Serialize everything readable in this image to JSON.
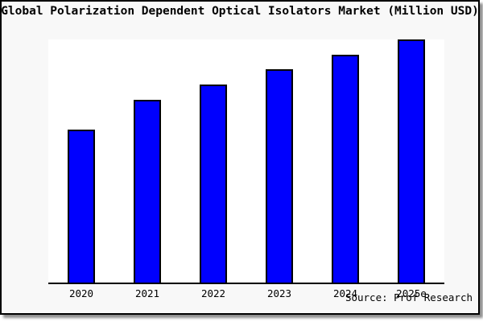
{
  "chart_data": {
    "type": "bar",
    "title": "Global Polarization Dependent Optical Isolators Market (Million USD)",
    "categories": [
      "2020",
      "2021",
      "2022",
      "2023",
      "2024",
      "2025e"
    ],
    "values": [
      62.9,
      75.3,
      81.5,
      87.7,
      93.7,
      100
    ],
    "values_note": "percent of tallest bar; y-axis has no ticks or labels in the image",
    "xlabel": "",
    "ylabel": "",
    "ylim": [
      0,
      100
    ],
    "grid": false,
    "y_axis_shown": false,
    "legend_shown": false,
    "bar_fill_color": "#0000fe",
    "bar_edge_color": "#000000"
  },
  "footer": {
    "source": "Source: Prof Research"
  },
  "colors": {
    "card_background": "#f8f8f8",
    "plot_background": "#ffffff",
    "border": "#000000",
    "text": "#000000"
  }
}
